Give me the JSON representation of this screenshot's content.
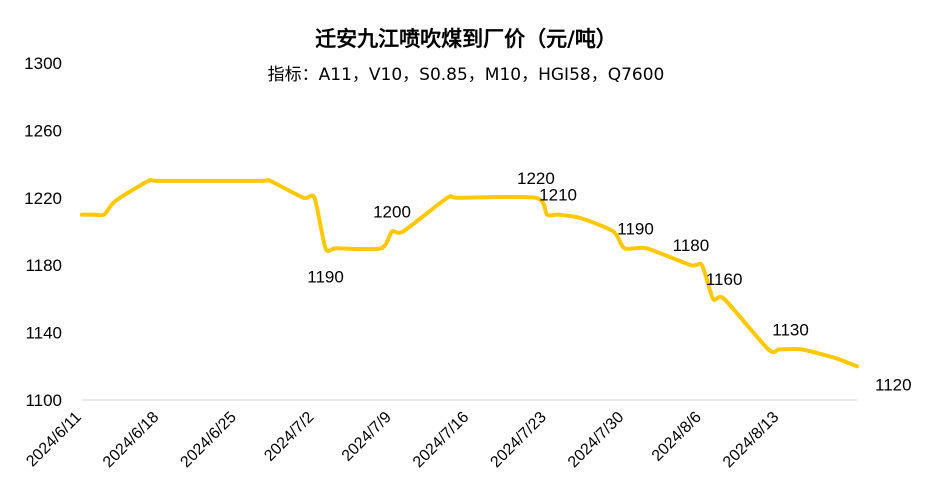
{
  "chart_data": {
    "type": "line",
    "title": "迁安九江喷吹煤到厂价（元/吨）",
    "subtitle": "指标：A11，V10，S0.85，M10，HGI58，Q7600",
    "ylim": [
      1100,
      1300
    ],
    "yticks": [
      1100,
      1140,
      1180,
      1220,
      1260,
      1300
    ],
    "xlim": [
      "2024-06-11",
      "2024-08-20"
    ],
    "xticks": [
      {
        "date": "2024-06-11",
        "label": "2024/6/11"
      },
      {
        "date": "2024-06-18",
        "label": "2024/6/18"
      },
      {
        "date": "2024-06-25",
        "label": "2024/6/25"
      },
      {
        "date": "2024-07-02",
        "label": "2024/7/2"
      },
      {
        "date": "2024-07-09",
        "label": "2024/7/9"
      },
      {
        "date": "2024-07-16",
        "label": "2024/7/16"
      },
      {
        "date": "2024-07-23",
        "label": "2024/7/23"
      },
      {
        "date": "2024-07-30",
        "label": "2024/7/30"
      },
      {
        "date": "2024-08-06",
        "label": "2024/8/6"
      },
      {
        "date": "2024-08-13",
        "label": "2024/8/13"
      }
    ],
    "grid": false,
    "line_color": "#FFC800",
    "series": [
      {
        "points": [
          {
            "date": "2024-06-11",
            "value": 1210
          },
          {
            "date": "2024-06-12",
            "value": 1210
          },
          {
            "date": "2024-06-13",
            "value": 1210
          },
          {
            "date": "2024-06-14",
            "value": 1218
          },
          {
            "date": "2024-06-17",
            "value": 1230
          },
          {
            "date": "2024-06-18",
            "value": 1230
          },
          {
            "date": "2024-06-27",
            "value": 1230
          },
          {
            "date": "2024-06-28",
            "value": 1230
          },
          {
            "date": "2024-07-01",
            "value": 1220
          },
          {
            "date": "2024-07-02",
            "value": 1220
          },
          {
            "date": "2024-07-03",
            "value": 1190
          },
          {
            "date": "2024-07-04",
            "value": 1190
          },
          {
            "date": "2024-07-08",
            "value": 1190
          },
          {
            "date": "2024-07-09",
            "value": 1200
          },
          {
            "date": "2024-07-10",
            "value": 1200
          },
          {
            "date": "2024-07-14",
            "value": 1220
          },
          {
            "date": "2024-07-15",
            "value": 1220
          },
          {
            "date": "2024-07-22",
            "value": 1220
          },
          {
            "date": "2024-07-23",
            "value": 1210
          },
          {
            "date": "2024-07-24",
            "value": 1210
          },
          {
            "date": "2024-07-26",
            "value": 1208
          },
          {
            "date": "2024-07-29",
            "value": 1200
          },
          {
            "date": "2024-07-30",
            "value": 1190
          },
          {
            "date": "2024-08-01",
            "value": 1190
          },
          {
            "date": "2024-08-05",
            "value": 1180
          },
          {
            "date": "2024-08-06",
            "value": 1180
          },
          {
            "date": "2024-08-07",
            "value": 1160
          },
          {
            "date": "2024-08-08",
            "value": 1160
          },
          {
            "date": "2024-08-12",
            "value": 1130
          },
          {
            "date": "2024-08-13",
            "value": 1130
          },
          {
            "date": "2024-08-15",
            "value": 1130
          },
          {
            "date": "2024-08-18",
            "value": 1125
          },
          {
            "date": "2024-08-20",
            "value": 1120
          }
        ]
      }
    ],
    "data_labels": [
      {
        "date": "2024-07-03",
        "value": 1190,
        "text": "1190",
        "position": "below"
      },
      {
        "date": "2024-07-09",
        "value": 1200,
        "text": "1200",
        "position": "above"
      },
      {
        "date": "2024-07-22",
        "value": 1220,
        "text": "1220",
        "position": "above"
      },
      {
        "date": "2024-07-24",
        "value": 1210,
        "text": "1210",
        "position": "above"
      },
      {
        "date": "2024-07-31",
        "value": 1190,
        "text": "1190",
        "position": "above"
      },
      {
        "date": "2024-08-05",
        "value": 1180,
        "text": "1180",
        "position": "above"
      },
      {
        "date": "2024-08-08",
        "value": 1160,
        "text": "1160",
        "position": "above"
      },
      {
        "date": "2024-08-14",
        "value": 1130,
        "text": "1130",
        "position": "above"
      },
      {
        "date": "2024-08-20",
        "value": 1120,
        "text": "1120",
        "position": "below-right"
      }
    ]
  }
}
